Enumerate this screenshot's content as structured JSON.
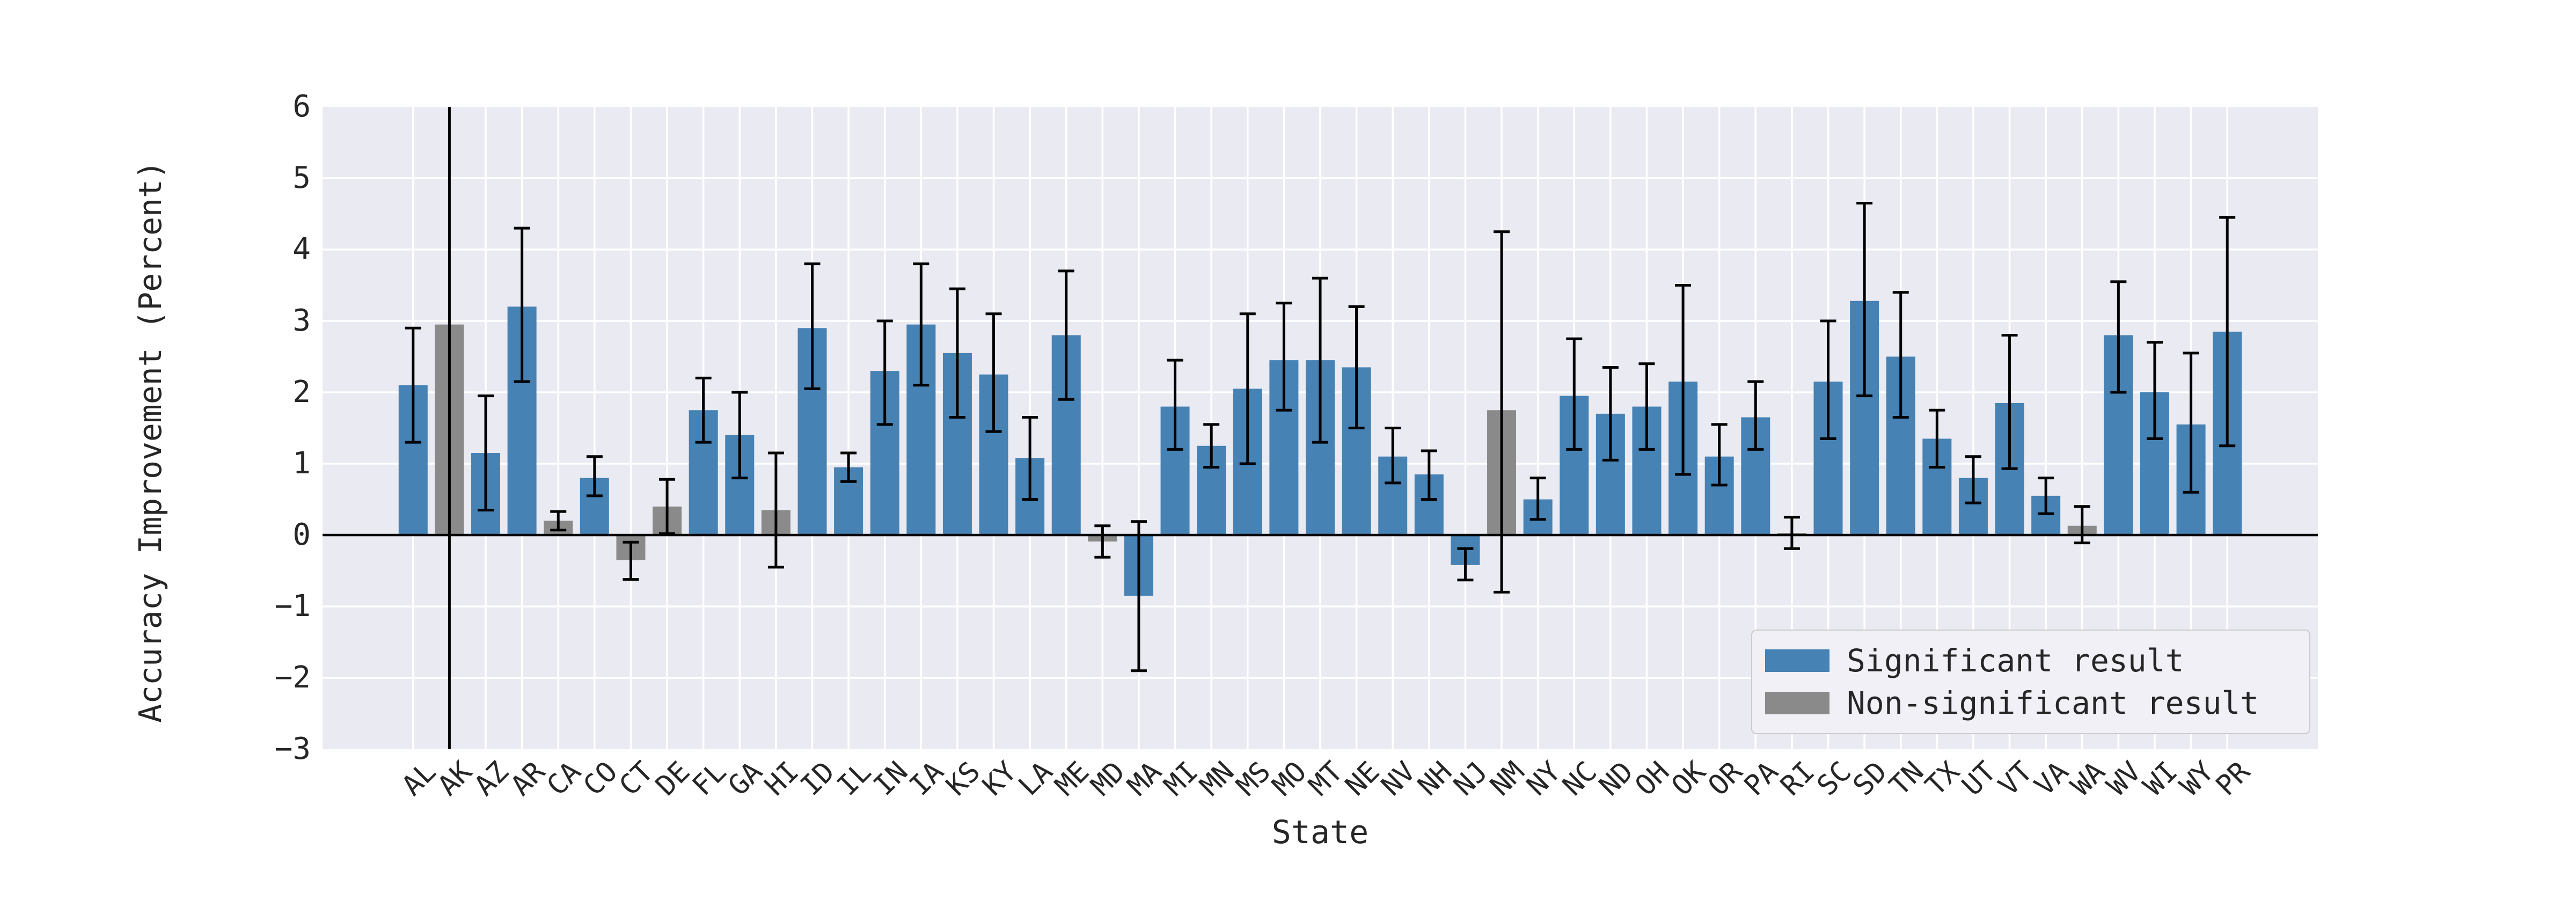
{
  "figure": {
    "background": "#ffffff",
    "plot_background": "#eaeaf2",
    "grid_color": "#ffffff",
    "zero_line_color": "#000000",
    "error_bar_color": "#000000",
    "text_color": "#262626"
  },
  "chart_data": {
    "type": "bar",
    "title": "",
    "xlabel": "State",
    "ylabel": "Accuracy Improvement (Percent)",
    "ylim": [
      -3,
      6
    ],
    "yticks": [
      6,
      5,
      4,
      3,
      2,
      1,
      0,
      -1,
      -2,
      -3
    ],
    "grid": true,
    "bar_color_significant": "#4682b4",
    "bar_color_non_significant": "#8a8a8a",
    "legend": {
      "position": "lower right",
      "entries": [
        {
          "label": "Significant result",
          "color": "#4682b4"
        },
        {
          "label": "Non-significant result",
          "color": "#8a8a8a"
        }
      ]
    },
    "categories": [
      "AL",
      "AK",
      "AZ",
      "AR",
      "CA",
      "CO",
      "CT",
      "DE",
      "FL",
      "GA",
      "HI",
      "ID",
      "IL",
      "IN",
      "IA",
      "KS",
      "KY",
      "LA",
      "ME",
      "MD",
      "MA",
      "MI",
      "MN",
      "MS",
      "MO",
      "MT",
      "NE",
      "NV",
      "NH",
      "NJ",
      "NM",
      "NY",
      "NC",
      "ND",
      "OH",
      "OK",
      "OR",
      "PA",
      "RI",
      "SC",
      "SD",
      "TN",
      "TX",
      "UT",
      "VT",
      "VA",
      "WA",
      "WV",
      "WI",
      "WY",
      "PR"
    ],
    "values": [
      2.1,
      2.95,
      1.15,
      3.2,
      0.2,
      0.8,
      -0.35,
      0.4,
      1.75,
      1.4,
      0.35,
      2.9,
      0.95,
      2.3,
      2.95,
      2.55,
      2.25,
      1.08,
      2.8,
      -0.09,
      -0.85,
      1.8,
      1.25,
      2.05,
      2.45,
      2.45,
      2.35,
      1.1,
      0.85,
      -0.42,
      1.75,
      0.5,
      1.95,
      1.7,
      1.8,
      2.15,
      1.1,
      1.65,
      0.03,
      2.15,
      3.28,
      2.5,
      1.35,
      0.8,
      1.85,
      0.55,
      0.13,
      2.8,
      2.0,
      1.55,
      2.85
    ],
    "error_low": [
      1.3,
      -3.3,
      0.35,
      2.15,
      0.07,
      0.55,
      -0.62,
      0.02,
      1.3,
      0.8,
      -0.45,
      2.05,
      0.75,
      1.55,
      2.1,
      1.65,
      1.45,
      0.5,
      1.9,
      -0.31,
      -1.9,
      1.2,
      0.95,
      1.0,
      1.75,
      1.3,
      1.5,
      0.73,
      0.5,
      -0.63,
      -0.8,
      0.22,
      1.2,
      1.05,
      1.2,
      0.85,
      0.7,
      1.2,
      -0.19,
      1.35,
      1.95,
      1.65,
      0.95,
      0.45,
      0.93,
      0.3,
      -0.11,
      2.0,
      1.35,
      0.6,
      1.25
    ],
    "error_high": [
      2.9,
      6.3,
      1.95,
      4.3,
      0.33,
      1.1,
      -0.1,
      0.78,
      2.2,
      2.0,
      1.15,
      3.8,
      1.15,
      3.0,
      3.8,
      3.45,
      3.1,
      1.65,
      3.7,
      0.13,
      0.19,
      2.45,
      1.55,
      3.1,
      3.25,
      3.6,
      3.2,
      1.5,
      1.18,
      -0.19,
      4.25,
      0.8,
      2.75,
      2.35,
      2.4,
      3.5,
      1.55,
      2.15,
      0.25,
      3.0,
      4.65,
      3.4,
      1.75,
      1.1,
      2.8,
      0.8,
      0.4,
      3.55,
      2.7,
      2.55,
      4.45
    ],
    "significant": [
      true,
      false,
      true,
      true,
      false,
      true,
      false,
      false,
      true,
      true,
      false,
      true,
      true,
      true,
      true,
      true,
      true,
      true,
      true,
      false,
      true,
      true,
      true,
      true,
      true,
      true,
      true,
      true,
      true,
      true,
      false,
      true,
      true,
      true,
      true,
      true,
      true,
      true,
      false,
      true,
      true,
      true,
      true,
      true,
      true,
      true,
      false,
      true,
      true,
      true,
      true
    ]
  }
}
